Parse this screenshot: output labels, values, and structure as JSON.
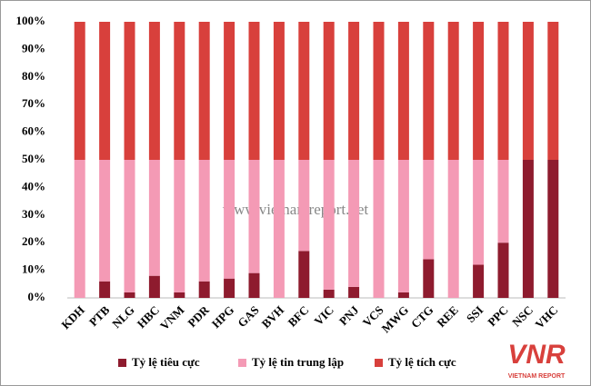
{
  "chart_data": {
    "type": "stacked_bar",
    "categories": [
      "KDH",
      "PTB",
      "NLG",
      "HBC",
      "VNM",
      "PDR",
      "HPG",
      "GAS",
      "BVH",
      "BFC",
      "VIC",
      "PNJ",
      "VCS",
      "MWG",
      "CTG",
      "REE",
      "SSI",
      "PPC",
      "NSC",
      "VHC"
    ],
    "series": [
      {
        "name": "Tỷ lệ tiêu cực",
        "color": "#8e1b2e",
        "values": [
          0,
          6,
          2,
          8,
          2,
          6,
          7,
          9,
          0,
          17,
          3,
          4,
          0,
          2,
          14,
          0,
          12,
          20,
          50,
          50
        ]
      },
      {
        "name": "Tỷ lệ tin trung lập",
        "color": "#f49ab5",
        "values": [
          50,
          44,
          48,
          42,
          48,
          44,
          43,
          41,
          50,
          33,
          47,
          46,
          50,
          48,
          36,
          50,
          38,
          30,
          0,
          0
        ]
      },
      {
        "name": "Tỷ lệ tích cực",
        "color": "#d8403c",
        "values": [
          50,
          50,
          50,
          50,
          50,
          50,
          50,
          50,
          50,
          50,
          50,
          50,
          50,
          50,
          50,
          50,
          50,
          50,
          50,
          50
        ]
      }
    ],
    "ylim": [
      0,
      100
    ],
    "yticks": [
      {
        "value": 0,
        "label": "0%"
      },
      {
        "value": 10,
        "label": "10%"
      },
      {
        "value": 20,
        "label": "20%"
      },
      {
        "value": 30,
        "label": "30%"
      },
      {
        "value": 40,
        "label": "40%"
      },
      {
        "value": 50,
        "label": "50%"
      },
      {
        "value": 60,
        "label": "60%"
      },
      {
        "value": 70,
        "label": "70%"
      },
      {
        "value": 80,
        "label": "80%"
      },
      {
        "value": 90,
        "label": "90%"
      },
      {
        "value": 100,
        "label": "100%"
      }
    ],
    "grid": false,
    "legend": "bottom",
    "watermark": "www.vietnamreport.net",
    "logo": "VNR",
    "logo_caption": "VIETNAM REPORT"
  }
}
